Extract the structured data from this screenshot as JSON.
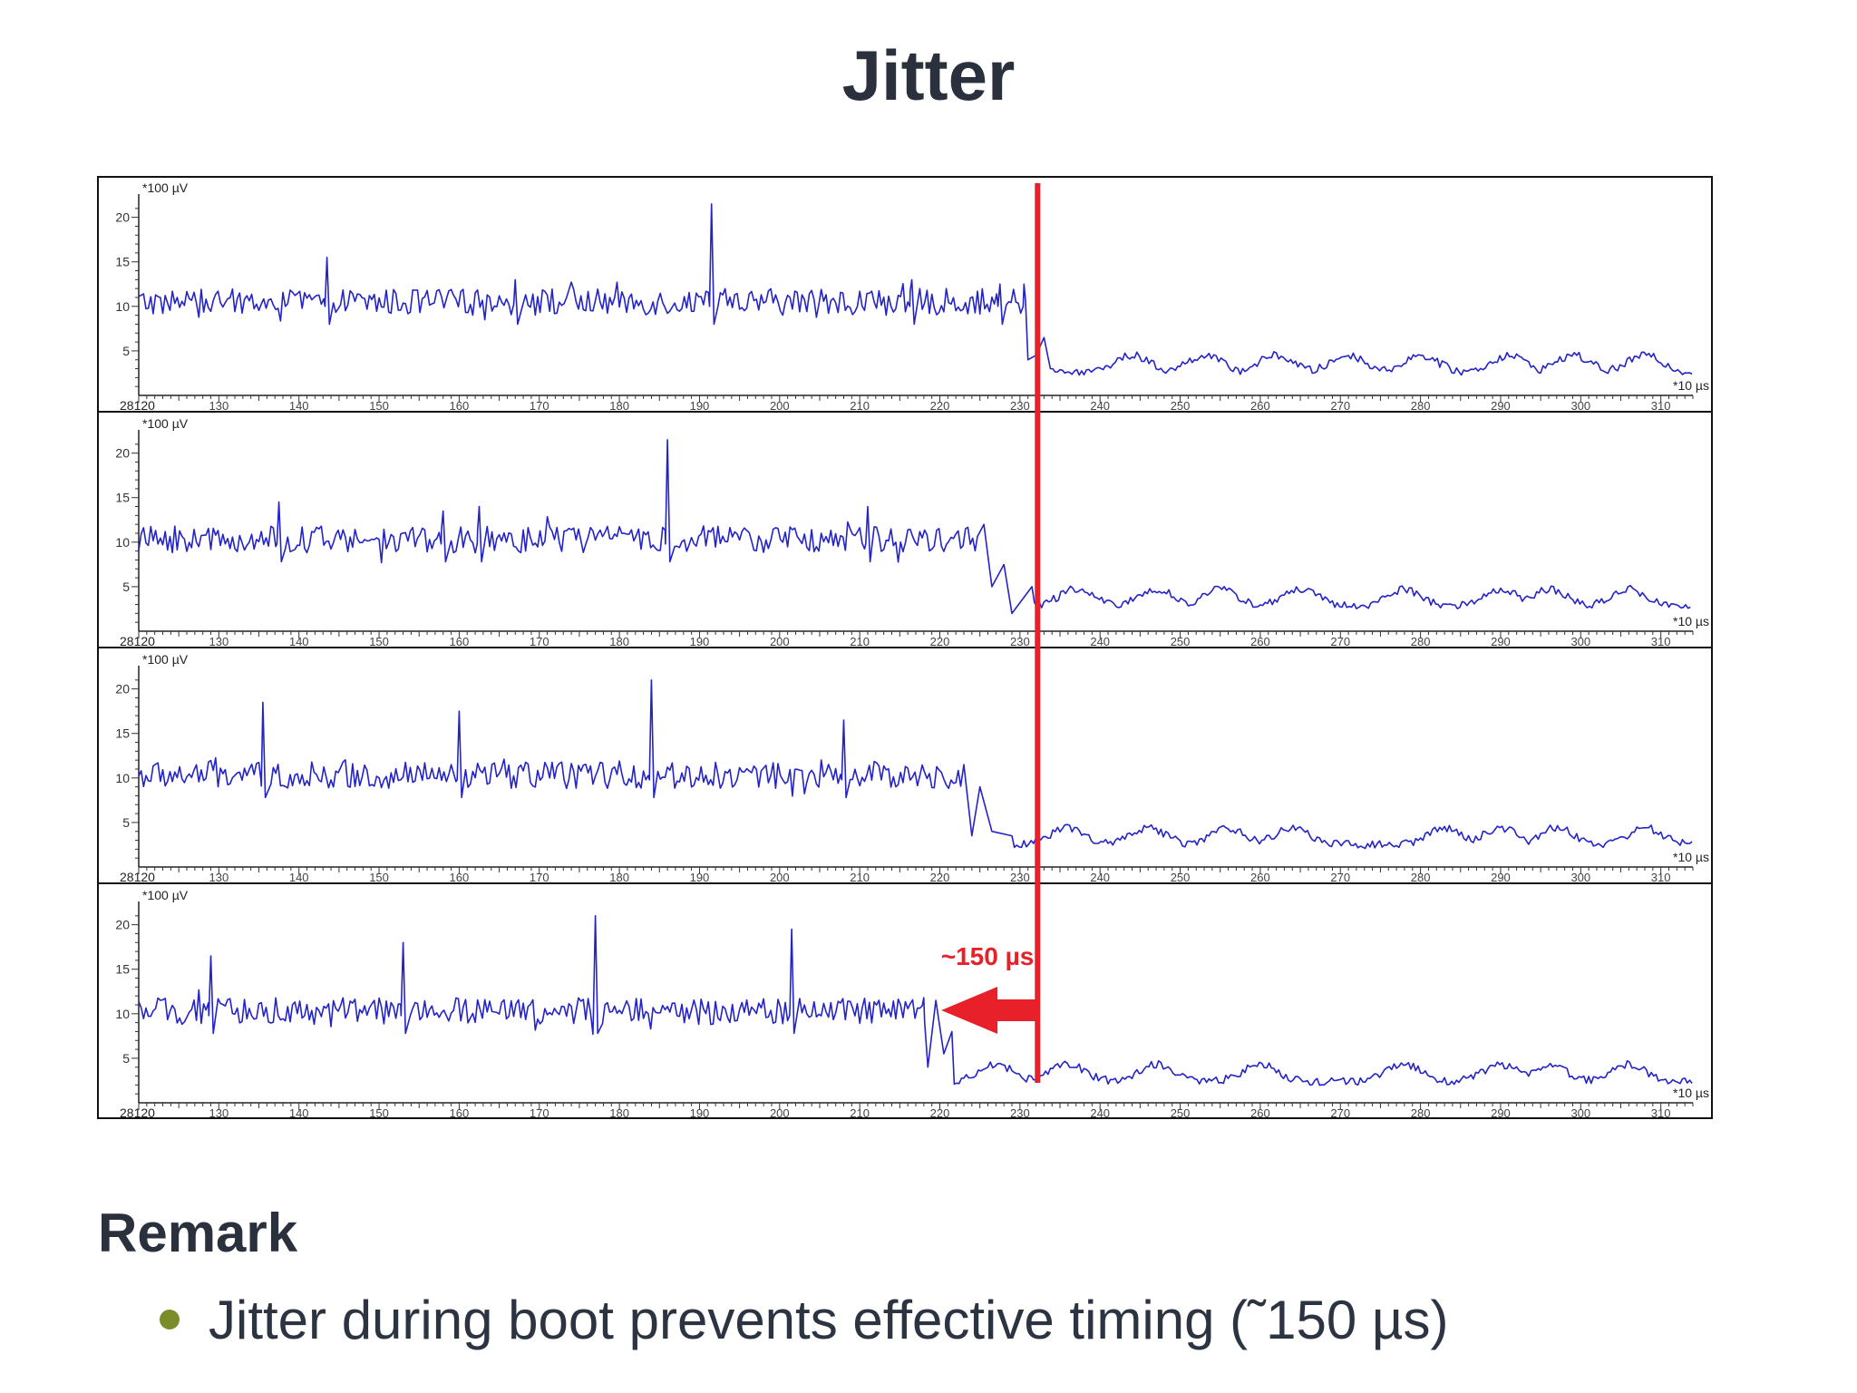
{
  "slide": {
    "title": "Jitter",
    "remark_heading": "Remark",
    "bullets": [
      "Jitter during boot prevents effective timing (˜150 µs)"
    ]
  },
  "colors": {
    "trace": "#2323c8",
    "marker": "#e8202a",
    "bullet": "#7a8c2a",
    "title": "#2a303c"
  },
  "annotation": {
    "label": "~150 µs",
    "marker_x": 232.2,
    "arrow_to_x": 219.5
  },
  "chart_data": {
    "type": "line",
    "panel_count": 4,
    "title": "",
    "y_unit_label": "*100 µV",
    "x_unit_label": "*10 µs",
    "x_origin_label": "28120",
    "xlim": [
      120,
      314
    ],
    "ylim": [
      0,
      22
    ],
    "y_ticks": [
      5,
      10,
      15,
      20
    ],
    "x_ticks": [
      130,
      140,
      150,
      160,
      170,
      180,
      190,
      200,
      210,
      220,
      230,
      240,
      250,
      260,
      270,
      280,
      290,
      300,
      310
    ],
    "x_tick_labels": [
      "130",
      "140",
      "150",
      "160",
      "170",
      "180",
      "190",
      "200",
      "210",
      "220",
      "230",
      "240",
      "250",
      "260",
      "270",
      "280",
      "290",
      "300",
      "310"
    ],
    "grid": false,
    "legend": "none",
    "series": [
      {
        "baseline": 10.5,
        "noise": 1.5,
        "drop_at": 232.0,
        "low_level": 2.6,
        "spikes": [
          {
            "x": 143.5,
            "y": 15.5
          },
          {
            "x": 167.0,
            "y": 13.0
          },
          {
            "x": 191.5,
            "y": 21.5
          },
          {
            "x": 216.5,
            "y": 13.0
          },
          {
            "x": 227.5,
            "y": 12.5
          }
        ],
        "transient": [
          {
            "x": 230.5,
            "y": 12.5
          },
          {
            "x": 231.0,
            "y": 4.0
          },
          {
            "x": 232.0,
            "y": 4.5
          },
          {
            "x": 233.0,
            "y": 6.5
          },
          {
            "x": 233.8,
            "y": 3.0
          }
        ],
        "wave_peaks": [
          244,
          253,
          262,
          271,
          280,
          291,
          299,
          308
        ]
      },
      {
        "baseline": 10.3,
        "noise": 1.5,
        "drop_at": 226.0,
        "low_level": 2.8,
        "spikes": [
          {
            "x": 137.5,
            "y": 14.5
          },
          {
            "x": 158.0,
            "y": 13.5
          },
          {
            "x": 162.5,
            "y": 14.0
          },
          {
            "x": 186.0,
            "y": 21.5
          },
          {
            "x": 211.0,
            "y": 14.0
          }
        ],
        "transient": [
          {
            "x": 225.5,
            "y": 12.0
          },
          {
            "x": 226.5,
            "y": 5.0
          },
          {
            "x": 228.0,
            "y": 7.5
          },
          {
            "x": 229.0,
            "y": 2.0
          },
          {
            "x": 231.5,
            "y": 5.0
          }
        ],
        "wave_peaks": [
          237,
          247,
          255,
          265,
          278,
          290,
          296,
          306
        ]
      },
      {
        "baseline": 10.3,
        "noise": 1.5,
        "drop_at": 224.0,
        "low_level": 2.5,
        "spikes": [
          {
            "x": 135.5,
            "y": 18.5
          },
          {
            "x": 160.0,
            "y": 17.5
          },
          {
            "x": 184.0,
            "y": 21.0
          },
          {
            "x": 208.0,
            "y": 16.5
          }
        ],
        "transient": [
          {
            "x": 223.0,
            "y": 11.5
          },
          {
            "x": 224.0,
            "y": 3.5
          },
          {
            "x": 225.0,
            "y": 9.0
          },
          {
            "x": 226.5,
            "y": 4.0
          },
          {
            "x": 229.0,
            "y": 3.5
          }
        ],
        "wave_peaks": [
          236,
          246,
          256,
          264,
          283,
          290,
          297,
          308
        ]
      },
      {
        "baseline": 10.3,
        "noise": 1.5,
        "drop_at": 219.5,
        "low_level": 2.4,
        "spikes": [
          {
            "x": 129.0,
            "y": 16.5
          },
          {
            "x": 153.0,
            "y": 18.0
          },
          {
            "x": 177.0,
            "y": 21.0
          },
          {
            "x": 201.5,
            "y": 19.5
          }
        ],
        "transient": [
          {
            "x": 218.0,
            "y": 11.8
          },
          {
            "x": 218.5,
            "y": 4.0
          },
          {
            "x": 219.5,
            "y": 11.5
          },
          {
            "x": 220.5,
            "y": 5.5
          },
          {
            "x": 221.5,
            "y": 8.0
          }
        ],
        "wave_peaks": [
          227,
          236,
          247,
          260,
          278,
          290,
          296,
          306
        ]
      }
    ]
  }
}
